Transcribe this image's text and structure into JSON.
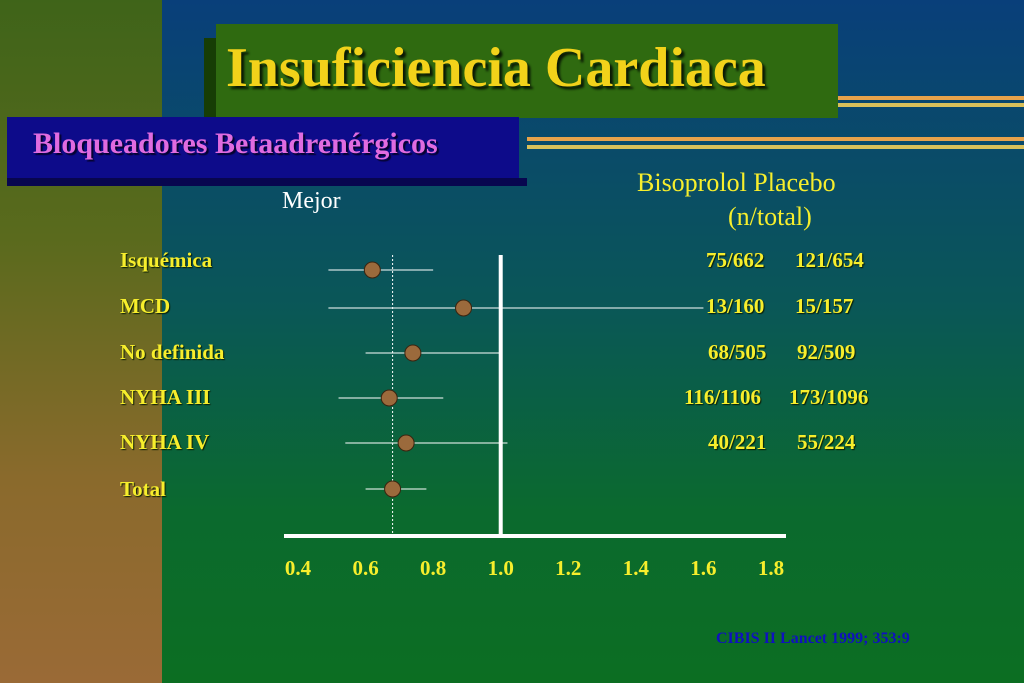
{
  "slide": {
    "title": "Insuficiencia  Cardiaca",
    "subtitle": "Bloqueadores  Betaadrenérgicos",
    "mejor_label": "Mejor",
    "column_header_line1": "Bisoprolol   Placebo",
    "column_header_line2": "(n/total)",
    "citation": "CIBIS II Lancet 1999; 353:9"
  },
  "colors": {
    "text_yellow": "#f7ee2c",
    "point_fill": "#9b6a3c",
    "title_green": "#2f6a10",
    "subtitle_blue": "#0d0b8a"
  },
  "chart_data": {
    "type": "scatter",
    "subtype": "forest-plot",
    "xlim": [
      0.4,
      1.8
    ],
    "x_ticks": [
      "0.4",
      "0.6",
      "0.8",
      "1.0",
      "1.2",
      "1.4",
      "1.6",
      "1.8"
    ],
    "x_tick_values": [
      0.4,
      0.6,
      0.8,
      1.0,
      1.2,
      1.4,
      1.6,
      1.8
    ],
    "reference_line": 1.0,
    "dotted_line": 0.68,
    "rows": [
      {
        "label": "Isquémica",
        "estimate": 0.62,
        "ci": [
          0.49,
          0.8
        ],
        "bisoprolol": "75/662",
        "placebo": "121/654"
      },
      {
        "label": "MCD",
        "estimate": 0.89,
        "ci": [
          0.49,
          1.6
        ],
        "bisoprolol": "13/160",
        "placebo": "15/157"
      },
      {
        "label": "No definida",
        "estimate": 0.74,
        "ci": [
          0.6,
          1.0
        ],
        "bisoprolol": "68/505",
        "placebo": "92/509"
      },
      {
        "label": "NYHA III",
        "estimate": 0.67,
        "ci": [
          0.52,
          0.83
        ],
        "bisoprolol": "116/1106",
        "placebo": "173/1096"
      },
      {
        "label": "NYHA IV",
        "estimate": 0.72,
        "ci": [
          0.54,
          1.02
        ],
        "bisoprolol": "40/221",
        "placebo": "55/224"
      },
      {
        "label": "Total",
        "estimate": 0.68,
        "ci": [
          0.6,
          0.78
        ],
        "bisoprolol": "",
        "placebo": ""
      }
    ]
  }
}
